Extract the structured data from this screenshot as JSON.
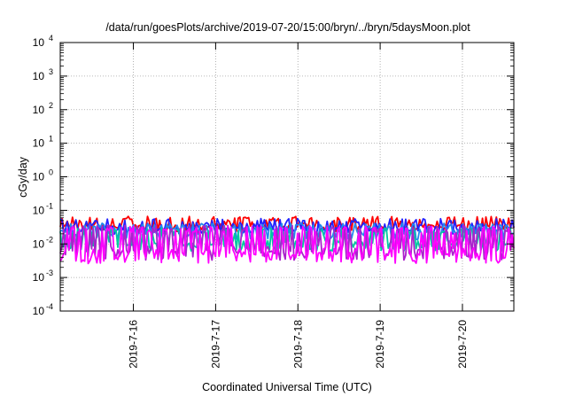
{
  "chart_data": {
    "type": "line",
    "title": "/data/run/goesPlots/archive/2019-07-20/15:00/bryn/../bryn/5daysMoon.plot",
    "xlabel": "Coordinated Universal Time (UTC)",
    "ylabel": "cGy/day",
    "y_scale": "log",
    "ylim_exponent": [
      -4,
      4
    ],
    "y_ticks": [
      {
        "base": "10",
        "exp": "-4"
      },
      {
        "base": "10",
        "exp": "-3"
      },
      {
        "base": "10",
        "exp": "-2"
      },
      {
        "base": "10",
        "exp": "-1"
      },
      {
        "base": "10",
        "exp": "0"
      },
      {
        "base": "10",
        "exp": "1"
      },
      {
        "base": "10",
        "exp": "2"
      },
      {
        "base": "10",
        "exp": "3"
      },
      {
        "base": "10",
        "exp": "4"
      }
    ],
    "x_start": "2019-07-15T02:40",
    "x_end": "2019-07-20T15:00",
    "x_ticks": [
      {
        "label": "2019-7-16",
        "value": "2019-07-16T00:00"
      },
      {
        "label": "2019-7-17",
        "value": "2019-07-17T00:00"
      },
      {
        "label": "2019-7-18",
        "value": "2019-07-18T00:00"
      },
      {
        "label": "2019-7-19",
        "value": "2019-07-19T00:00"
      },
      {
        "label": "2019-7-20",
        "value": "2019-07-20T00:00"
      }
    ],
    "grid": true,
    "legend": "none",
    "series": [
      {
        "color": "#ff0000",
        "base": 0.03,
        "spike": 0.055,
        "amp": 0.35
      },
      {
        "color": "#2222ff",
        "base": 0.026,
        "spike": 0.048,
        "amp": 0.4
      },
      {
        "color": "#2288ee",
        "base": 0.02,
        "spike": 0.035,
        "amp": 0.6
      },
      {
        "color": "#00c8a0",
        "base": 0.0085,
        "spike": 0.025,
        "amp": 0.55
      },
      {
        "color": "#aa22cc",
        "base": 0.0055,
        "spike": 0.03,
        "amp": 0.75
      },
      {
        "color": "#ff00ff",
        "base": 0.0045,
        "spike": 0.028,
        "amp": 0.8
      }
    ]
  }
}
